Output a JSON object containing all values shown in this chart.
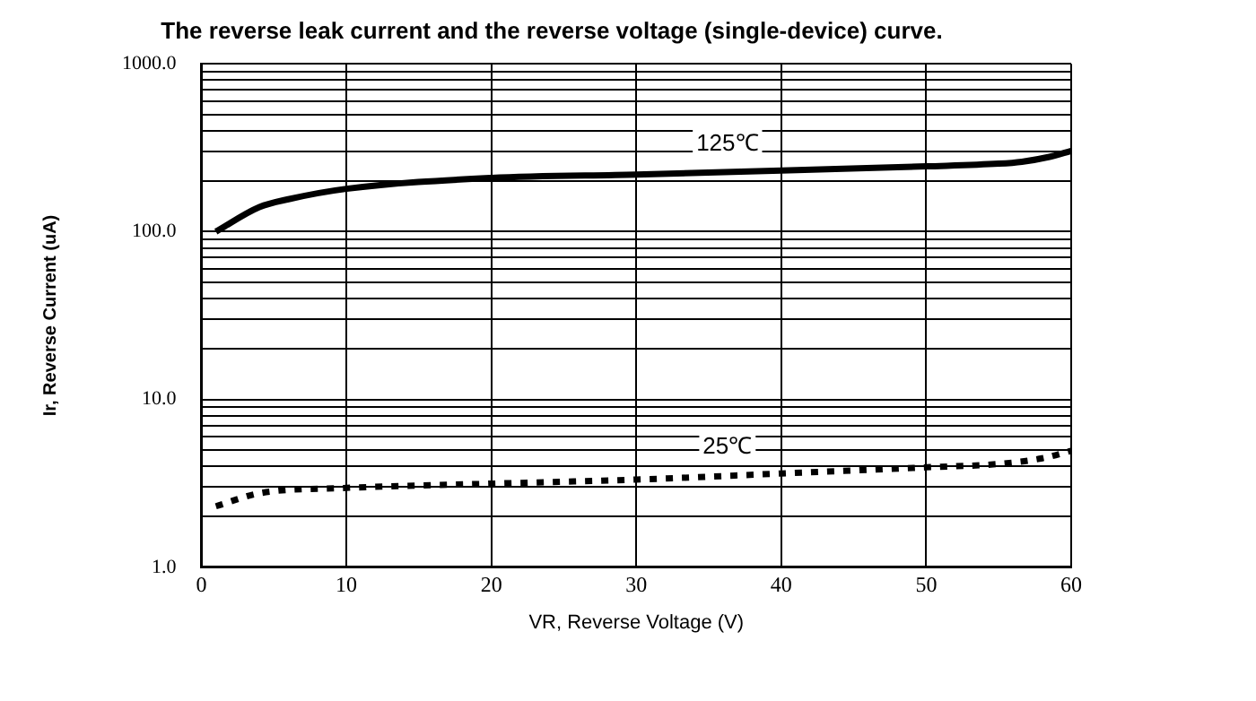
{
  "chart_data": {
    "type": "line",
    "title": "The reverse leak current and the reverse voltage (single-device) curve.",
    "xlabel": "VR, Reverse Voltage (V)",
    "ylabel": "Ir, Reverse Current (uA)",
    "log": "y",
    "grid": true,
    "legend": false,
    "marker": "none",
    "xlim": [
      0,
      60
    ],
    "xticks": [
      0,
      10,
      20,
      30,
      40,
      50,
      60
    ],
    "ylim": [
      1,
      1000
    ],
    "yticks": [
      {
        "value": 1,
        "label": "1.0"
      },
      {
        "value": 2,
        "label": null
      },
      {
        "value": 3,
        "label": null
      },
      {
        "value": 4,
        "label": null
      },
      {
        "value": 5,
        "label": null
      },
      {
        "value": 6,
        "label": null
      },
      {
        "value": 7,
        "label": null
      },
      {
        "value": 8,
        "label": null
      },
      {
        "value": 9,
        "label": null
      },
      {
        "value": 10,
        "label": "10.0"
      },
      {
        "value": 20,
        "label": null
      },
      {
        "value": 30,
        "label": null
      },
      {
        "value": 40,
        "label": null
      },
      {
        "value": 50,
        "label": null
      },
      {
        "value": 60,
        "label": null
      },
      {
        "value": 70,
        "label": null
      },
      {
        "value": 80,
        "label": null
      },
      {
        "value": 90,
        "label": null
      },
      {
        "value": 100,
        "label": "100.0"
      },
      {
        "value": 200,
        "label": null
      },
      {
        "value": 300,
        "label": null
      },
      {
        "value": 400,
        "label": null
      },
      {
        "value": 500,
        "label": null
      },
      {
        "value": 600,
        "label": null
      },
      {
        "value": 700,
        "label": null
      },
      {
        "value": 800,
        "label": null
      },
      {
        "value": 900,
        "label": null
      },
      {
        "value": 1000,
        "label": "1000.0"
      }
    ],
    "series": [
      {
        "name": "125℃",
        "color": "#000000",
        "line_style": "solid",
        "x": [
          1,
          4,
          6,
          10,
          20,
          30,
          40,
          50,
          55,
          56.6,
          58.5,
          60
        ],
        "values": [
          100,
          140,
          156,
          180,
          209,
          219,
          231,
          245,
          254,
          261,
          279,
          303
        ]
      },
      {
        "name": "25℃",
        "color": "#000000",
        "line_style": "dotted",
        "x": [
          1,
          4,
          10,
          20,
          30,
          40,
          50,
          55,
          58,
          60
        ],
        "values": [
          2.31,
          2.76,
          2.97,
          3.15,
          3.33,
          3.62,
          3.94,
          4.13,
          4.46,
          4.94
        ]
      }
    ]
  }
}
